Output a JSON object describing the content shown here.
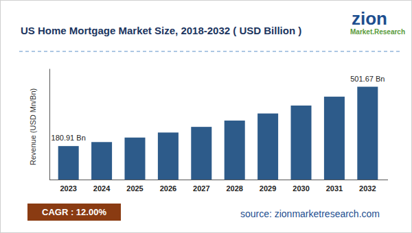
{
  "chart_data": {
    "type": "bar",
    "title": "US Home Mortgage Market Size, 2018-2032 ( USD Billion )",
    "ylabel": "Revenue (USD Mn/Bn)",
    "categories": [
      "2023",
      "2024",
      "2025",
      "2026",
      "2027",
      "2028",
      "2029",
      "2030",
      "2031",
      "2032"
    ],
    "values": [
      180.91,
      202.62,
      226.93,
      254.16,
      284.66,
      318.82,
      357.08,
      399.93,
      447.92,
      501.67
    ],
    "value_labels": [
      "180.91 Bn",
      null,
      null,
      null,
      null,
      null,
      null,
      null,
      null,
      "501.67 Bn"
    ],
    "data_labels": true,
    "color": "#2d5b8a",
    "ylim": [
      0,
      600
    ],
    "yticks": [],
    "tick_labels": "x",
    "grid": false,
    "annotations": [
      "CAGR : 12.00%",
      "source: zionmarketresearch.com",
      "zion",
      "Market.Research"
    ]
  }
}
